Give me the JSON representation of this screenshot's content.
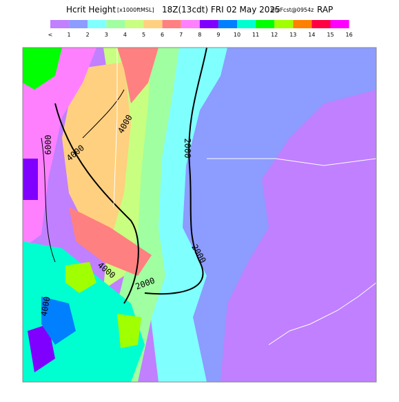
{
  "header": {
    "title_main": "Hcrit Height",
    "title_units": "[x1000ftMSL]",
    "title_time": "18Z(13cdt) FRI 02 May 2025",
    "title_fcst": "9hrFcst@0954z",
    "title_model": "RAP"
  },
  "legend": {
    "labels": [
      "<",
      1,
      2,
      3,
      4,
      5,
      6,
      7,
      8,
      9,
      10,
      11,
      12,
      13,
      14,
      15,
      16
    ],
    "colors": [
      "#c080ff",
      "#8c9cff",
      "#80ffff",
      "#a0ffa0",
      "#c8ff80",
      "#ffd080",
      "#ff8080",
      "#ff80ff",
      "#8000ff",
      "#0080ff",
      "#00ffd0",
      "#00ff00",
      "#a0ff00",
      "#ff8000",
      "#ff0040",
      "#ff00ff"
    ]
  },
  "map": {
    "contour_labels": [
      "6000",
      "4000",
      "4000",
      "2000",
      "2000",
      "4000",
      "2000",
      "4000"
    ]
  }
}
